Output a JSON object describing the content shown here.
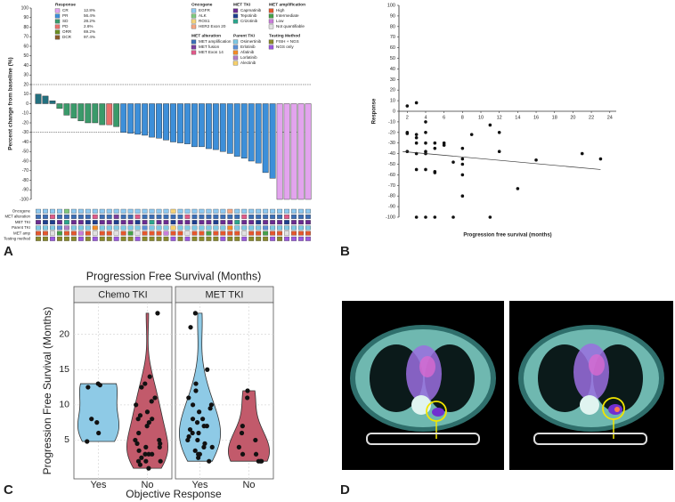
{
  "panels": [
    "A",
    "B",
    "C",
    "D"
  ],
  "chart_data": [
    {
      "type": "waterfall",
      "y_label": "Percent change from baseline (%)",
      "ylim": [
        -100,
        100
      ],
      "yticks": [
        -100,
        -90,
        -80,
        -70,
        -60,
        -50,
        -40,
        -30,
        -20,
        -10,
        0,
        10,
        20,
        30,
        40,
        50,
        60,
        70,
        80,
        90,
        100
      ],
      "threshold_lines": [
        20,
        -30
      ],
      "values": [
        10,
        8,
        3,
        -5,
        -12,
        -15,
        -18,
        -20,
        -20,
        -22,
        -22,
        -24,
        -30,
        -31,
        -32,
        -33,
        -35,
        -36,
        -38,
        -40,
        -41,
        -42,
        -45,
        -45,
        -47,
        -48,
        -50,
        -52,
        -55,
        -57,
        -60,
        -62,
        -72,
        -78,
        -100,
        -100,
        -100,
        -100,
        -100
      ],
      "colors": [
        "#23707f",
        "#23707f",
        "#23707f",
        "#3a9a6a",
        "#3a9a6a",
        "#3a9a6a",
        "#3a9a6a",
        "#3a9a6a",
        "#3a9a6a",
        "#3a9a6a",
        "#e8706b",
        "#3a9a6a",
        "#3d8fd9",
        "#3d8fd9",
        "#3d8fd9",
        "#3d8fd9",
        "#3d8fd9",
        "#3d8fd9",
        "#3d8fd9",
        "#3d8fd9",
        "#3d8fd9",
        "#3d8fd9",
        "#3d8fd9",
        "#3d8fd9",
        "#3d8fd9",
        "#3d8fd9",
        "#3d8fd9",
        "#3d8fd9",
        "#3d8fd9",
        "#3d8fd9",
        "#3d8fd9",
        "#3d8fd9",
        "#3d8fd9",
        "#3d8fd9",
        "#e3a4ee",
        "#e3a4ee",
        "#e3a4ee",
        "#e3a4ee",
        "#e3a4ee"
      ],
      "legend_groups": [
        {
          "title": "Response",
          "items": [
            {
              "label": "CR",
              "share": "12.8%",
              "color": "#e3a4ee"
            },
            {
              "label": "PR",
              "share": "56.4%",
              "color": "#3d8fd9"
            },
            {
              "label": "SD",
              "share": "28.2%",
              "color": "#3a9a6a"
            },
            {
              "label": "PD",
              "share": "2.6%",
              "color": "#e8706b"
            },
            {
              "label": "ORR",
              "share": "69.2%",
              "color": "#6b8e23"
            },
            {
              "label": "DCR",
              "share": "97.4%",
              "color": "#8b5a2b"
            }
          ]
        },
        {
          "title": "Oncogene",
          "items": [
            {
              "label": "EGFR",
              "color": "#8ec9f0"
            },
            {
              "label": "ALK",
              "color": "#7fc97f"
            },
            {
              "label": "ROS1",
              "color": "#f4d37a"
            },
            {
              "label": "HER2 Exon 20",
              "color": "#f4a582"
            }
          ]
        },
        {
          "title": "MET TKI",
          "items": [
            {
              "label": "Capmatinib",
              "color": "#6a2c91"
            },
            {
              "label": "Tepotinib",
              "color": "#1f3f8f"
            },
            {
              "label": "Crizotinib",
              "color": "#2ca58d"
            }
          ]
        },
        {
          "title": "MET amplification",
          "items": [
            {
              "label": "High",
              "color": "#e4572e"
            },
            {
              "label": "Intermediate",
              "color": "#45a049"
            },
            {
              "label": "Low",
              "color": "#c87ed8"
            },
            {
              "label": "Not quantifiable",
              "color": "#e0e0e0"
            }
          ]
        },
        {
          "title": "MET alteration",
          "items": [
            {
              "label": "MET amplification",
              "color": "#3b6fb6"
            },
            {
              "label": "MET fusion",
              "color": "#7b3f9e"
            },
            {
              "label": "MET Exon 14",
              "color": "#e05a8a"
            }
          ]
        },
        {
          "title": "Parent TKI",
          "items": [
            {
              "label": "Osimertinib",
              "color": "#7ec8e3"
            },
            {
              "label": "Erlotinib",
              "color": "#5b8fd6"
            },
            {
              "label": "Afatinib",
              "color": "#f28c28"
            },
            {
              "label": "Lorlatinib",
              "color": "#b07cc6"
            },
            {
              "label": "Alectinib",
              "color": "#f6d06b"
            }
          ]
        },
        {
          "title": "Testing Method",
          "items": [
            {
              "label": "FISH + NGS",
              "color": "#8a8a2a"
            },
            {
              "label": "NGS only",
              "color": "#9b59e0"
            }
          ]
        }
      ],
      "tracks": [
        {
          "name": "Oncogene",
          "colors": [
            "#8ec9f0",
            "#8ec9f0",
            "#8ec9f0",
            "#8ec9f0",
            "#7fc97f",
            "#8ec9f0",
            "#8ec9f0",
            "#8ec9f0",
            "#8ec9f0",
            "#8ec9f0",
            "#8ec9f0",
            "#8ec9f0",
            "#8ec9f0",
            "#8ec9f0",
            "#8ec9f0",
            "#8ec9f0",
            "#8ec9f0",
            "#8ec9f0",
            "#8ec9f0",
            "#f4d37a",
            "#8ec9f0",
            "#8ec9f0",
            "#8ec9f0",
            "#8ec9f0",
            "#8ec9f0",
            "#8ec9f0",
            "#8ec9f0",
            "#f4a582",
            "#8ec9f0",
            "#8ec9f0",
            "#8ec9f0",
            "#8ec9f0",
            "#8ec9f0",
            "#8ec9f0",
            "#8ec9f0",
            "#8ec9f0",
            "#8ec9f0",
            "#8ec9f0",
            "#8ec9f0"
          ]
        },
        {
          "name": "MET alteration",
          "colors": [
            "#3b6fb6",
            "#3b6fb6",
            "#e05a8a",
            "#3b6fb6",
            "#3b6fb6",
            "#3b6fb6",
            "#3b6fb6",
            "#3b6fb6",
            "#e05a8a",
            "#3b6fb6",
            "#3b6fb6",
            "#7b3f9e",
            "#3b6fb6",
            "#3b6fb6",
            "#e05a8a",
            "#3b6fb6",
            "#3b6fb6",
            "#3b6fb6",
            "#3b6fb6",
            "#3b6fb6",
            "#3b6fb6",
            "#e05a8a",
            "#3b6fb6",
            "#3b6fb6",
            "#3b6fb6",
            "#3b6fb6",
            "#3b6fb6",
            "#3b6fb6",
            "#3b6fb6",
            "#e05a8a",
            "#3b6fb6",
            "#3b6fb6",
            "#3b6fb6",
            "#3b6fb6",
            "#3b6fb6",
            "#e05a8a",
            "#3b6fb6",
            "#3b6fb6",
            "#3b6fb6"
          ]
        },
        {
          "name": "MET TKI",
          "colors": [
            "#6a2c91",
            "#1f3f8f",
            "#1f3f8f",
            "#6a2c91",
            "#2ca58d",
            "#6a2c91",
            "#6a2c91",
            "#1f3f8f",
            "#1f3f8f",
            "#6a2c91",
            "#6a2c91",
            "#1f3f8f",
            "#6a2c91",
            "#6a2c91",
            "#1f3f8f",
            "#6a2c91",
            "#2ca58d",
            "#6a2c91",
            "#6a2c91",
            "#1f3f8f",
            "#6a2c91",
            "#6a2c91",
            "#1f3f8f",
            "#6a2c91",
            "#6a2c91",
            "#1f3f8f",
            "#6a2c91",
            "#6a2c91",
            "#2ca58d",
            "#6a2c91",
            "#6a2c91",
            "#1f3f8f",
            "#6a2c91",
            "#6a2c91",
            "#6a2c91",
            "#1f3f8f",
            "#6a2c91",
            "#6a2c91",
            "#6a2c91"
          ]
        },
        {
          "name": "Parent TKI",
          "colors": [
            "#7ec8e3",
            "#7ec8e3",
            "#7ec8e3",
            "#5b8fd6",
            "#b07cc6",
            "#7ec8e3",
            "#7ec8e3",
            "#7ec8e3",
            "#f28c28",
            "#7ec8e3",
            "#7ec8e3",
            "#7ec8e3",
            "#7ec8e3",
            "#7ec8e3",
            "#7ec8e3",
            "#5b8fd6",
            "#7ec8e3",
            "#7ec8e3",
            "#7ec8e3",
            "#f6d06b",
            "#7ec8e3",
            "#7ec8e3",
            "#7ec8e3",
            "#7ec8e3",
            "#7ec8e3",
            "#7ec8e3",
            "#7ec8e3",
            "#f28c28",
            "#7ec8e3",
            "#7ec8e3",
            "#7ec8e3",
            "#7ec8e3",
            "#5b8fd6",
            "#7ec8e3",
            "#7ec8e3",
            "#7ec8e3",
            "#7ec8e3",
            "#7ec8e3",
            "#7ec8e3"
          ]
        },
        {
          "name": "MET amp",
          "colors": [
            "#e4572e",
            "#e4572e",
            "#e0e0e0",
            "#45a049",
            "#e4572e",
            "#e4572e",
            "#c87ed8",
            "#e4572e",
            "#e0e0e0",
            "#e4572e",
            "#e4572e",
            "#e0e0e0",
            "#e4572e",
            "#45a049",
            "#e0e0e0",
            "#e4572e",
            "#e4572e",
            "#e4572e",
            "#c87ed8",
            "#e4572e",
            "#e4572e",
            "#e0e0e0",
            "#e4572e",
            "#e4572e",
            "#45a049",
            "#e4572e",
            "#e4572e",
            "#e4572e",
            "#e4572e",
            "#e0e0e0",
            "#e4572e",
            "#e4572e",
            "#45a049",
            "#e4572e",
            "#e4572e",
            "#e0e0e0",
            "#e4572e",
            "#e4572e",
            "#e4572e"
          ]
        },
        {
          "name": "Testing method",
          "colors": [
            "#8a8a2a",
            "#8a8a2a",
            "#9b59e0",
            "#8a8a2a",
            "#8a8a2a",
            "#8a8a2a",
            "#9b59e0",
            "#8a8a2a",
            "#9b59e0",
            "#8a8a2a",
            "#8a8a2a",
            "#9b59e0",
            "#8a8a2a",
            "#8a8a2a",
            "#9b59e0",
            "#8a8a2a",
            "#8a8a2a",
            "#8a8a2a",
            "#8a8a2a",
            "#9b59e0",
            "#8a8a2a",
            "#9b59e0",
            "#8a8a2a",
            "#8a8a2a",
            "#8a8a2a",
            "#8a8a2a",
            "#9b59e0",
            "#8a8a2a",
            "#8a8a2a",
            "#9b59e0",
            "#8a8a2a",
            "#8a8a2a",
            "#8a8a2a",
            "#9b59e0",
            "#8a8a2a",
            "#9b59e0",
            "#9b59e0",
            "#9b59e0",
            "#9b59e0"
          ]
        }
      ]
    },
    {
      "type": "scatter",
      "x_label": "Progression free survival (months)",
      "y_label": "Response",
      "xlim": [
        1.1,
        24.7
      ],
      "ylim": [
        -100,
        100
      ],
      "xticks": [
        2,
        4,
        6,
        8,
        10,
        12,
        14,
        16,
        18,
        20,
        22,
        24
      ],
      "yticks": [
        -100,
        -90,
        -80,
        -70,
        -60,
        -50,
        -40,
        -30,
        -20,
        -10,
        0,
        10,
        20,
        30,
        40,
        50,
        60,
        70,
        80,
        90,
        100
      ],
      "x": [
        2,
        3,
        2,
        2,
        3,
        3,
        3,
        4,
        4,
        4,
        2,
        3,
        4,
        5,
        5,
        6,
        6,
        3,
        4,
        5,
        5,
        7,
        8,
        8,
        8,
        8,
        8,
        9,
        11,
        12,
        12,
        14,
        16,
        21,
        23,
        3,
        4,
        5,
        7,
        11,
        4
      ],
      "y": [
        5,
        8,
        -20,
        -21,
        -22,
        -25,
        -30,
        -30,
        -20,
        -38,
        -38,
        -40,
        -40,
        -30,
        -35,
        -30,
        -32,
        -55,
        -55,
        -57,
        -58,
        -48,
        -45,
        -50,
        -35,
        -60,
        -80,
        -22,
        -13,
        -20,
        -38,
        -73,
        -46,
        -40,
        -45,
        -100,
        -100,
        -100,
        -100,
        -100,
        -10
      ],
      "trend": {
        "x": [
          1.5,
          23
        ],
        "y": [
          -38,
          -55
        ]
      }
    },
    {
      "type": "violin",
      "title": "Progression Free Survival (Months)",
      "x_label": "Objective Response",
      "y_label": "Progression Free Survival (Months)",
      "ylim": [
        -0.5,
        24.5
      ],
      "yticks": [
        5,
        10,
        15,
        20
      ],
      "facets": [
        {
          "name": "Chemo TKI",
          "groups": [
            {
              "name": "Yes",
              "color": "#8ecae6",
              "values": [
                13,
                12.8,
                12.5,
                8,
                7.5,
                6,
                4.8
              ]
            },
            {
              "name": "No",
              "color": "#c25a6b",
              "values": [
                23,
                14,
                13,
                12.5,
                11,
                10.5,
                10,
                9,
                8.5,
                8,
                8,
                7.5,
                7,
                6,
                5,
                5,
                4.5,
                4.5,
                4,
                4,
                3.5,
                3,
                3,
                3,
                2.5,
                2,
                2,
                2,
                1.5,
                1
              ]
            }
          ]
        },
        {
          "name": "MET TKI",
          "groups": [
            {
              "name": "Yes",
              "color": "#8ecae6",
              "values": [
                23,
                21,
                15,
                13,
                12,
                11,
                10,
                10,
                9.5,
                9,
                8,
                8,
                7.5,
                7,
                7,
                6.5,
                6,
                6,
                5.5,
                5,
                5,
                4.5,
                4,
                4,
                3.5,
                3,
                3,
                2.5,
                2
              ]
            },
            {
              "name": "No",
              "color": "#c25a6b",
              "values": [
                12,
                11,
                7,
                6,
                5,
                4,
                3,
                3,
                2,
                2,
                2
              ]
            }
          ]
        }
      ]
    }
  ]
}
